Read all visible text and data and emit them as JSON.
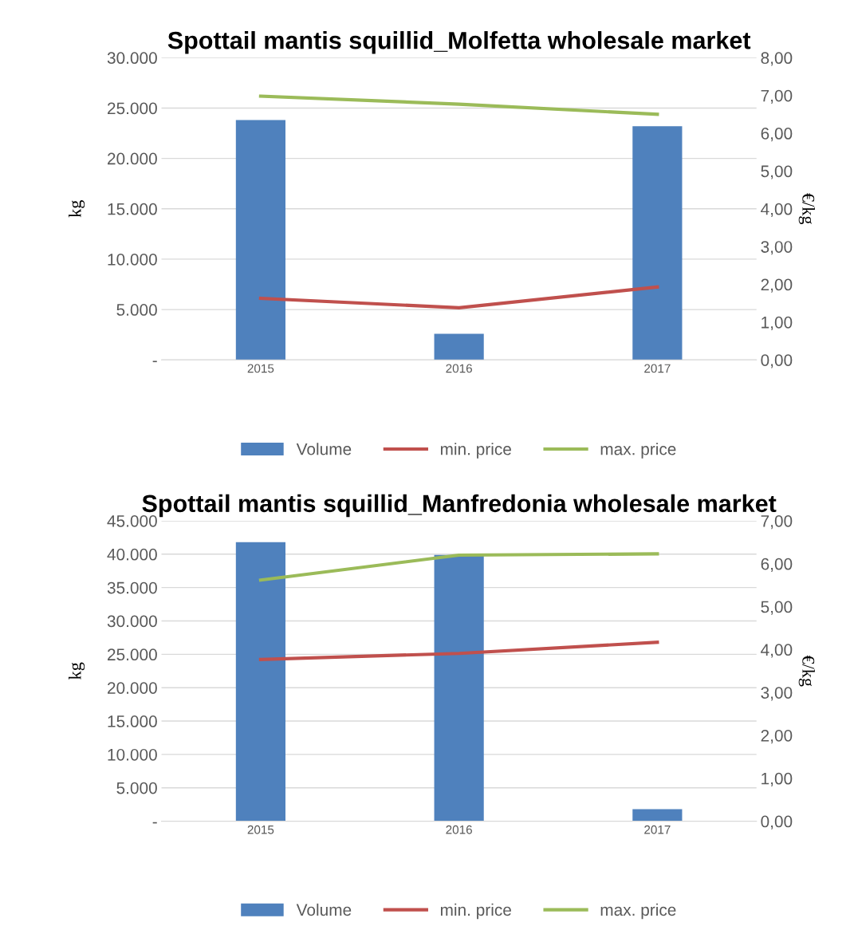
{
  "chart_data": [
    {
      "type": "bar",
      "title": "Spottail mantis squillid_Molfetta wholesale market",
      "ylabel": "kg",
      "y2label": "€/kg",
      "categories": [
        "2015",
        "2016",
        "2017"
      ],
      "series": [
        {
          "name": "Volume",
          "color": "#4f81bd",
          "values": [
            23800,
            2600,
            23200
          ]
        },
        {
          "name": "min. price",
          "type": "line",
          "axis": "y2",
          "color": "#c0504d",
          "values": [
            1.63,
            1.38,
            1.93
          ]
        },
        {
          "name": "max. price",
          "type": "line",
          "axis": "y2",
          "color": "#9bbb59",
          "values": [
            6.98,
            6.77,
            6.5
          ]
        }
      ],
      "ylim": [
        0,
        30000
      ],
      "yticks": [
        {
          "value": 0,
          "label": "-"
        },
        {
          "value": 5000,
          "label": "5.000"
        },
        {
          "value": 10000,
          "label": "10.000"
        },
        {
          "value": 15000,
          "label": "15.000"
        },
        {
          "value": 20000,
          "label": "20.000"
        },
        {
          "value": 25000,
          "label": "25.000"
        },
        {
          "value": 30000,
          "label": "30.000"
        }
      ],
      "y2lim": [
        0,
        8
      ],
      "y2ticks": [
        {
          "value": 0,
          "label": "0,00"
        },
        {
          "value": 1,
          "label": "1,00"
        },
        {
          "value": 2,
          "label": "2,00"
        },
        {
          "value": 3,
          "label": "3,00"
        },
        {
          "value": 4,
          "label": "4,00"
        },
        {
          "value": 5,
          "label": "5,00"
        },
        {
          "value": 6,
          "label": "6,00"
        },
        {
          "value": 7,
          "label": "7,00"
        },
        {
          "value": 8,
          "label": "8,00"
        }
      ],
      "grid": "y",
      "legend": "bottom"
    },
    {
      "type": "bar",
      "title": "Spottail mantis squillid_Manfredonia wholesale market",
      "ylabel": "kg",
      "y2label": "€/kg",
      "categories": [
        "2015",
        "2016",
        "2017"
      ],
      "series": [
        {
          "name": "Volume",
          "color": "#4f81bd",
          "values": [
            41800,
            39900,
            1800
          ]
        },
        {
          "name": "min. price",
          "type": "line",
          "axis": "y2",
          "color": "#c0504d",
          "values": [
            3.77,
            3.91,
            4.17
          ]
        },
        {
          "name": "max. price",
          "type": "line",
          "axis": "y2",
          "color": "#9bbb59",
          "values": [
            5.62,
            6.2,
            6.23
          ]
        }
      ],
      "ylim": [
        0,
        45000
      ],
      "yticks": [
        {
          "value": 0,
          "label": "-"
        },
        {
          "value": 5000,
          "label": "5.000"
        },
        {
          "value": 10000,
          "label": "10.000"
        },
        {
          "value": 15000,
          "label": "15.000"
        },
        {
          "value": 20000,
          "label": "20.000"
        },
        {
          "value": 25000,
          "label": "25.000"
        },
        {
          "value": 30000,
          "label": "30.000"
        },
        {
          "value": 35000,
          "label": "35.000"
        },
        {
          "value": 40000,
          "label": "40.000"
        },
        {
          "value": 45000,
          "label": "45.000"
        }
      ],
      "y2lim": [
        0,
        7
      ],
      "y2ticks": [
        {
          "value": 0,
          "label": "0,00"
        },
        {
          "value": 1,
          "label": "1,00"
        },
        {
          "value": 2,
          "label": "2,00"
        },
        {
          "value": 3,
          "label": "3,00"
        },
        {
          "value": 4,
          "label": "4,00"
        },
        {
          "value": 5,
          "label": "5,00"
        },
        {
          "value": 6,
          "label": "6,00"
        },
        {
          "value": 7,
          "label": "7,00"
        }
      ],
      "grid": "y",
      "legend": "bottom"
    }
  ]
}
